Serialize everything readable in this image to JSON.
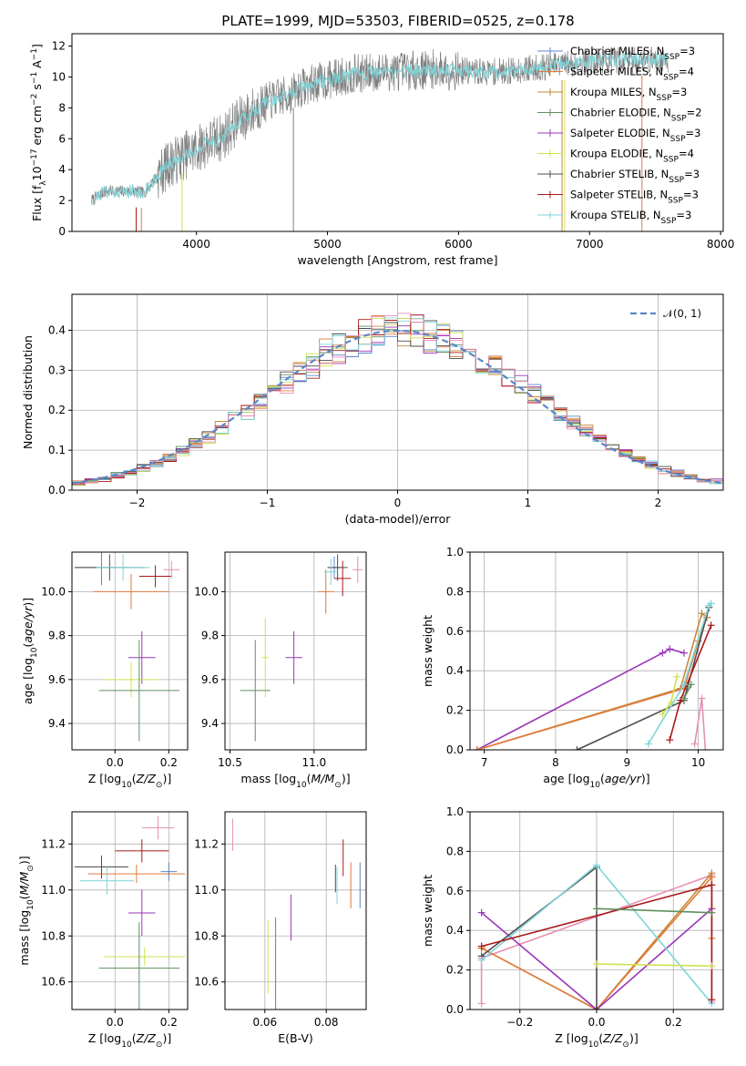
{
  "figure": {
    "title": "PLATE=1999, MJD=53503, FIBERID=0525, z=0.178"
  },
  "chart_data": [
    {
      "id": "spectrum",
      "type": "line",
      "xlabel": "wavelength [Angstrom, rest frame]",
      "ylabel": "Flux [f",
      "xlim": [
        3050,
        8020
      ],
      "ylim": [
        0,
        12.8
      ],
      "xticks": [
        4000,
        5000,
        6000,
        7000,
        8000
      ],
      "yticks": [
        0,
        2,
        4,
        6,
        8,
        10,
        12
      ],
      "grid": false,
      "legend_position": "top-right",
      "observed_color": "#808080",
      "model_color": "#7fd4d8",
      "continuum": {
        "x": [
          3200,
          3300,
          3400,
          3500,
          3600,
          3700,
          3800,
          3900,
          4000,
          4100,
          4200,
          4300,
          4400,
          4500,
          4600,
          4700,
          4800,
          4900,
          5000,
          5200,
          5400,
          5600,
          5800,
          6000,
          6200,
          6400,
          6600,
          6800,
          7000,
          7200,
          7400,
          7600
        ],
        "y": [
          2.0,
          2.6,
          2.6,
          2.6,
          2.5,
          3.6,
          4.4,
          4.9,
          5.3,
          5.8,
          6.1,
          7.0,
          7.6,
          8.2,
          8.6,
          8.8,
          9.3,
          9.6,
          9.8,
          10.2,
          10.3,
          10.4,
          10.5,
          10.4,
          10.3,
          10.4,
          10.6,
          10.8,
          11.0,
          11.1,
          11.1,
          11.1
        ]
      },
      "legend": [
        {
          "name": "Chabrier MILES, N",
          "sub": "SSP",
          "tail": "=3",
          "color": "#5b86c9"
        },
        {
          "name": "Salpeter MILES, N",
          "sub": "SSP",
          "tail": "=4",
          "color": "#e07a3a"
        },
        {
          "name": "Kroupa MILES, N",
          "sub": "SSP",
          "tail": "=3",
          "color": "#c68a3a"
        },
        {
          "name": "Chabrier ELODIE, N",
          "sub": "SSP",
          "tail": "=2",
          "color": "#5f8f5f"
        },
        {
          "name": "Salpeter ELODIE, N",
          "sub": "SSP",
          "tail": "=3",
          "color": "#9a35b8"
        },
        {
          "name": "Kroupa ELODIE, N",
          "sub": "SSP",
          "tail": "=4",
          "color": "#d2e052"
        },
        {
          "name": "Chabrier STELIB, N",
          "sub": "SSP",
          "tail": "=3",
          "color": "#4d4d4d"
        },
        {
          "name": "Salpeter STELIB, N",
          "sub": "SSP",
          "tail": "=3",
          "color": "#aa1a1a"
        },
        {
          "name": "Kroupa STELIB, N",
          "sub": "SSP",
          "tail": "=3",
          "color": "#7fd4d8"
        }
      ]
    },
    {
      "id": "residual_histogram",
      "type": "bar",
      "xlabel": "(data-model)/error",
      "ylabel": "Normed distribution",
      "xlim": [
        -2.5,
        2.5
      ],
      "ylim": [
        0,
        0.49
      ],
      "xticks": [
        -2,
        -1,
        0,
        1,
        2
      ],
      "yticks": [
        0.0,
        0.1,
        0.2,
        0.3,
        0.4
      ],
      "grid": true,
      "legend_position": "top-right",
      "gaussian_label": "𝒩(0, 1)",
      "gaussian_color": "#5b86c9",
      "bin_width": 0.1,
      "series_colors": [
        "#5b86c9",
        "#e07a3a",
        "#c68a3a",
        "#5f8f5f",
        "#9a35b8",
        "#d2e052",
        "#4d4d4d",
        "#aa1a1a",
        "#7fd4d8",
        "#e58fb5"
      ]
    },
    {
      "id": "z_age",
      "type": "scatter",
      "xlabel": "Z [log",
      "ylabel": "age  [log",
      "xlim": [
        -0.16,
        0.27
      ],
      "ylim": [
        9.28,
        10.18
      ],
      "xticks": [
        0.0,
        0.2
      ],
      "yticks": [
        9.4,
        9.6,
        9.8,
        10.0
      ],
      "grid": true,
      "points": [
        {
          "x": -0.05,
          "y": 10.11,
          "xerr": 0.1,
          "yerr": 0.08,
          "color": "#5b86c9"
        },
        {
          "x": 0.06,
          "y": 10.0,
          "xerr": 0.14,
          "yerr": 0.08,
          "color": "#e07a3a"
        },
        {
          "x": -0.02,
          "y": 10.11,
          "xerr": 0.13,
          "yerr": 0.06,
          "color": "#4d4d4d"
        },
        {
          "x": 0.15,
          "y": 10.07,
          "xerr": 0.06,
          "yerr": 0.05,
          "color": "#aa1a1a"
        },
        {
          "x": 0.21,
          "y": 10.1,
          "xerr": 0.03,
          "yerr": 0.04,
          "color": "#e58fb5"
        },
        {
          "x": 0.03,
          "y": 10.11,
          "xerr": 0.1,
          "yerr": 0.06,
          "color": "#7fd4d8"
        },
        {
          "x": 0.1,
          "y": 9.7,
          "xerr": 0.05,
          "yerr": 0.12,
          "color": "#9a35b8"
        },
        {
          "x": 0.06,
          "y": 9.6,
          "xerr": 0.1,
          "yerr": 0.08,
          "color": "#d2e052"
        },
        {
          "x": 0.09,
          "y": 9.55,
          "xerr": 0.15,
          "yerr": 0.23,
          "color": "#5f8f5f"
        }
      ]
    },
    {
      "id": "mass_age",
      "type": "scatter",
      "xlabel": "mass [log",
      "ylabel": "",
      "xlim": [
        10.47,
        11.31
      ],
      "ylim": [
        9.28,
        10.18
      ],
      "xticks": [
        10.5,
        11.0
      ],
      "yticks": [
        9.4,
        9.6,
        9.8,
        10.0
      ],
      "grid": true,
      "points": [
        {
          "x": 11.12,
          "y": 10.11,
          "xerr": 0.04,
          "yerr": 0.05,
          "color": "#5b86c9"
        },
        {
          "x": 11.07,
          "y": 10.0,
          "xerr": 0.05,
          "yerr": 0.1,
          "color": "#e07a3a"
        },
        {
          "x": 11.14,
          "y": 10.11,
          "xerr": 0.06,
          "yerr": 0.06,
          "color": "#4d4d4d"
        },
        {
          "x": 11.17,
          "y": 10.06,
          "xerr": 0.05,
          "yerr": 0.08,
          "color": "#aa1a1a"
        },
        {
          "x": 11.26,
          "y": 10.1,
          "xerr": 0.03,
          "yerr": 0.06,
          "color": "#e58fb5"
        },
        {
          "x": 11.1,
          "y": 10.09,
          "xerr": 0.04,
          "yerr": 0.06,
          "color": "#7fd4d8"
        },
        {
          "x": 10.88,
          "y": 9.7,
          "xerr": 0.05,
          "yerr": 0.12,
          "color": "#9a35b8"
        },
        {
          "x": 10.71,
          "y": 9.7,
          "xerr": 0.02,
          "yerr": 0.18,
          "color": "#d2e052"
        },
        {
          "x": 10.65,
          "y": 9.55,
          "xerr": 0.09,
          "yerr": 0.23,
          "color": "#5f8f5f"
        }
      ]
    },
    {
      "id": "age_massweight",
      "type": "line",
      "xlabel": "age  [log",
      "ylabel": "mass weight",
      "xlim": [
        6.8,
        10.35
      ],
      "ylim": [
        0,
        1.0
      ],
      "xticks": [
        7,
        8,
        9,
        10
      ],
      "yticks": [
        0.0,
        0.2,
        0.4,
        0.6,
        0.8,
        1.0
      ],
      "grid": true,
      "series": [
        {
          "color": "#9a35b8",
          "x": [
            6.9,
            9.5,
            9.6,
            9.8
          ],
          "y": [
            0.0,
            0.49,
            0.51,
            0.49
          ]
        },
        {
          "color": "#c68a3a",
          "x": [
            6.9,
            9.75,
            10.05,
            10.12
          ],
          "y": [
            0.0,
            0.31,
            0.69,
            0.67
          ]
        },
        {
          "color": "#e07a3a",
          "x": [
            6.9,
            9.8,
            10.0,
            10.12
          ],
          "y": [
            0.0,
            0.31,
            0.55,
            0.67
          ]
        },
        {
          "color": "#4d4d4d",
          "x": [
            8.3,
            9.8,
            10.15
          ],
          "y": [
            0.0,
            0.25,
            0.72
          ]
        },
        {
          "color": "#d2e052",
          "x": [
            9.5,
            9.62,
            9.7
          ],
          "y": [
            0.18,
            0.24,
            0.37
          ]
        },
        {
          "color": "#aa1a1a",
          "x": [
            9.6,
            9.75,
            10.18
          ],
          "y": [
            0.05,
            0.25,
            0.63
          ]
        },
        {
          "color": "#7fd4d8",
          "x": [
            9.3,
            9.8,
            10.15,
            10.18
          ],
          "y": [
            0.03,
            0.33,
            0.73,
            0.74
          ]
        },
        {
          "color": "#e58fb5",
          "x": [
            9.95,
            10.05,
            10.1
          ],
          "y": [
            0.03,
            0.26,
            0.0
          ]
        },
        {
          "color": "#5f8f5f",
          "x": [
            9.8,
            9.9
          ],
          "y": [
            0.26,
            0.33
          ]
        }
      ]
    },
    {
      "id": "z_mass",
      "type": "scatter",
      "xlabel": "Z [log",
      "ylabel": "mass [log",
      "xlim": [
        -0.16,
        0.27
      ],
      "ylim": [
        10.48,
        11.34
      ],
      "xticks": [
        0.0,
        0.2
      ],
      "yticks": [
        10.6,
        10.8,
        11.0,
        11.2
      ],
      "grid": true,
      "points": [
        {
          "x": 0.08,
          "y": 11.07,
          "xerr": 0.18,
          "yerr": 0.04,
          "color": "#e07a3a"
        },
        {
          "x": -0.05,
          "y": 11.1,
          "xerr": 0.1,
          "yerr": 0.05,
          "color": "#4d4d4d"
        },
        {
          "x": 0.1,
          "y": 11.17,
          "xerr": 0.1,
          "yerr": 0.05,
          "color": "#aa1a1a"
        },
        {
          "x": 0.16,
          "y": 11.27,
          "xerr": 0.06,
          "yerr": 0.05,
          "color": "#e58fb5"
        },
        {
          "x": -0.03,
          "y": 11.04,
          "xerr": 0.1,
          "yerr": 0.06,
          "color": "#7fd4d8"
        },
        {
          "x": 0.1,
          "y": 10.9,
          "xerr": 0.05,
          "yerr": 0.1,
          "color": "#9a35b8"
        },
        {
          "x": 0.11,
          "y": 10.71,
          "xerr": 0.15,
          "yerr": 0.04,
          "color": "#d2e052"
        },
        {
          "x": 0.09,
          "y": 10.66,
          "xerr": 0.15,
          "yerr": 0.2,
          "color": "#5f8f5f"
        },
        {
          "x": 0.2,
          "y": 11.08,
          "xerr": 0.03,
          "yerr": 0.04,
          "color": "#5b86c9"
        }
      ]
    },
    {
      "id": "ebv_mass",
      "type": "scatter",
      "xlabel": "E(B-V)",
      "ylabel": "",
      "xlim": [
        0.047,
        0.093
      ],
      "ylim": [
        10.48,
        11.34
      ],
      "xticks": [
        0.06,
        0.08
      ],
      "yticks": [
        10.6,
        10.8,
        11.0,
        11.2
      ],
      "grid": true,
      "points": [
        {
          "x": 0.0495,
          "y": 11.24,
          "xerr": 0,
          "yerr": 0.07,
          "color": "#e58fb5"
        },
        {
          "x": 0.061,
          "y": 10.71,
          "xerr": 0,
          "yerr": 0.16,
          "color": "#d2e052"
        },
        {
          "x": 0.0635,
          "y": 10.68,
          "xerr": 0,
          "yerr": 0.2,
          "color": "#5f8f5f"
        },
        {
          "x": 0.0685,
          "y": 10.88,
          "xerr": 0,
          "yerr": 0.1,
          "color": "#9a35b8"
        },
        {
          "x": 0.083,
          "y": 11.05,
          "xerr": 0,
          "yerr": 0.06,
          "color": "#4d4d4d"
        },
        {
          "x": 0.0835,
          "y": 11.02,
          "xerr": 0,
          "yerr": 0.08,
          "color": "#7fd4d8"
        },
        {
          "x": 0.0855,
          "y": 11.14,
          "xerr": 0,
          "yerr": 0.08,
          "color": "#aa1a1a"
        },
        {
          "x": 0.088,
          "y": 11.02,
          "xerr": 0,
          "yerr": 0.1,
          "color": "#e07a3a"
        },
        {
          "x": 0.091,
          "y": 11.02,
          "xerr": 0,
          "yerr": 0.1,
          "color": "#5b86c9"
        }
      ]
    },
    {
      "id": "z_massweight",
      "type": "line",
      "xlabel": "Z [log",
      "ylabel": "mass weight",
      "xlim": [
        -0.33,
        0.33
      ],
      "ylim": [
        0,
        1.0
      ],
      "xticks": [
        -0.2,
        0.0,
        0.2
      ],
      "yticks": [
        0.0,
        0.2,
        0.4,
        0.6,
        0.8,
        1.0
      ],
      "grid": true,
      "series": [
        {
          "color": "#e58fb5",
          "x": [
            -0.3,
            -0.3,
            0.3,
            0.3
          ],
          "y": [
            0.03,
            0.26,
            0.68,
            0.04
          ]
        },
        {
          "color": "#c68a3a",
          "x": [
            -0.3,
            0.0,
            0.3
          ],
          "y": [
            0.31,
            0.0,
            0.69
          ]
        },
        {
          "color": "#e07a3a",
          "x": [
            -0.3,
            0.0,
            0.3,
            0.3
          ],
          "y": [
            0.31,
            0.0,
            0.67,
            0.36
          ]
        },
        {
          "color": "#9a35b8",
          "x": [
            -0.3,
            0.0,
            0.3
          ],
          "y": [
            0.49,
            0.0,
            0.51
          ]
        },
        {
          "color": "#4d4d4d",
          "x": [
            -0.3,
            0.0,
            0.0
          ],
          "y": [
            0.27,
            0.72,
            0.0
          ]
        },
        {
          "color": "#7fd4d8",
          "x": [
            -0.3,
            0.0,
            0.3
          ],
          "y": [
            0.25,
            0.73,
            0.03
          ]
        },
        {
          "color": "#aa1a1a",
          "x": [
            -0.3,
            0.3,
            0.3
          ],
          "y": [
            0.32,
            0.63,
            0.05
          ]
        },
        {
          "color": "#5f8f5f",
          "x": [
            0.0,
            0.3
          ],
          "y": [
            0.51,
            0.49
          ]
        },
        {
          "color": "#d2e052",
          "x": [
            0.0,
            0.3
          ],
          "y": [
            0.23,
            0.22
          ]
        }
      ]
    }
  ]
}
